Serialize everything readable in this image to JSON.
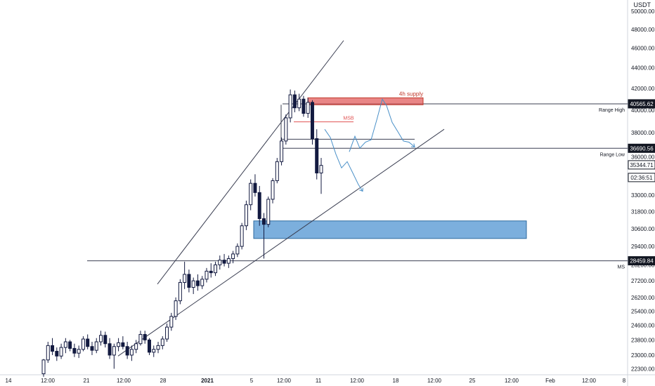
{
  "chart_data": {
    "type": "candlestick",
    "currency": "USDT",
    "y_axis": {
      "scale": "log",
      "ylim": [
        22000,
        50800
      ],
      "tick_labels": [
        "50000.00",
        "48000.00",
        "46000.00",
        "44000.00",
        "42000.00",
        "40000.00",
        "38000.00",
        "36000.00",
        "33000.00",
        "31800.00",
        "30600.00",
        "29400.00",
        "28200.00",
        "27200.00",
        "26200.00",
        "25400.00",
        "24600.00",
        "23800.00",
        "23000.00",
        "22300.00"
      ],
      "price_tags": [
        {
          "label": "40565.62",
          "value": 40565.62,
          "color": "#131722"
        },
        {
          "label": "36690.56",
          "value": 36690.56,
          "color": "#131722"
        },
        {
          "label": "35344.71",
          "value": 35344.71,
          "color": "#ffffff"
        },
        {
          "label": "02:36:51",
          "value": 34350,
          "color": "#ffffff"
        },
        {
          "label": "28459.84",
          "value": 28459.84,
          "color": "#131722"
        }
      ]
    },
    "x_axis": {
      "tick_labels": [
        "14",
        "12:00",
        "21",
        "12:00",
        "28",
        "2021",
        "5",
        "12:00",
        "11",
        "12:00",
        "18",
        "12:00",
        "25",
        "12:00",
        "Feb",
        "12:00",
        "8"
      ]
    },
    "candles": [
      [
        22050,
        22800,
        21900,
        22750
      ],
      [
        22750,
        23700,
        22600,
        23500
      ],
      [
        23500,
        23900,
        23000,
        23200
      ],
      [
        23200,
        23400,
        22700,
        22950
      ],
      [
        22950,
        23600,
        22800,
        23400
      ],
      [
        23400,
        23900,
        23100,
        23700
      ],
      [
        23700,
        23800,
        23200,
        23350
      ],
      [
        23350,
        23600,
        22900,
        23100
      ],
      [
        23100,
        23500,
        22850,
        23300
      ],
      [
        23300,
        24000,
        23200,
        23850
      ],
      [
        23850,
        24100,
        23300,
        23450
      ],
      [
        23450,
        23700,
        23000,
        23250
      ],
      [
        23250,
        23900,
        23100,
        23700
      ],
      [
        23700,
        24300,
        23500,
        24050
      ],
      [
        24050,
        24250,
        23400,
        23600
      ],
      [
        23600,
        23900,
        22800,
        23000
      ],
      [
        23000,
        23600,
        22300,
        23450
      ],
      [
        23450,
        23900,
        23200,
        23650
      ],
      [
        23650,
        24000,
        23300,
        23450
      ],
      [
        23450,
        23700,
        22800,
        23000
      ],
      [
        23000,
        23500,
        22700,
        23300
      ],
      [
        23300,
        23800,
        23100,
        23600
      ],
      [
        23600,
        24300,
        23500,
        24100
      ],
      [
        24100,
        24300,
        23600,
        23800
      ],
      [
        23800,
        23900,
        23000,
        23150
      ],
      [
        23150,
        23500,
        22900,
        23300
      ],
      [
        23300,
        23700,
        23100,
        23500
      ],
      [
        23500,
        24000,
        23300,
        23850
      ],
      [
        23850,
        24700,
        23700,
        24500
      ],
      [
        24500,
        25300,
        24300,
        25100
      ],
      [
        25100,
        26200,
        24900,
        26000
      ],
      [
        26000,
        27300,
        25800,
        27100
      ],
      [
        27100,
        28400,
        26700,
        27600
      ],
      [
        27600,
        27900,
        26500,
        26800
      ],
      [
        26800,
        27400,
        26400,
        27200
      ],
      [
        27200,
        27600,
        26600,
        26900
      ],
      [
        26900,
        27500,
        26700,
        27300
      ],
      [
        27300,
        28000,
        27100,
        27800
      ],
      [
        27800,
        28300,
        27400,
        27700
      ],
      [
        27700,
        28400,
        27500,
        28200
      ],
      [
        28200,
        28800,
        27900,
        28500
      ],
      [
        28500,
        28900,
        28100,
        28300
      ],
      [
        28300,
        28800,
        28000,
        28600
      ],
      [
        28600,
        29100,
        28300,
        28900
      ],
      [
        28900,
        29600,
        28700,
        29400
      ],
      [
        29400,
        31000,
        29200,
        30800
      ],
      [
        30800,
        32600,
        30500,
        32300
      ],
      [
        32300,
        34200,
        31900,
        33900
      ],
      [
        33900,
        34600,
        32900,
        33200
      ],
      [
        33200,
        33700,
        30800,
        31300
      ],
      [
        31300,
        31700,
        28600,
        30900
      ],
      [
        30900,
        32900,
        30700,
        32700
      ],
      [
        32700,
        34300,
        32400,
        34100
      ],
      [
        34100,
        35900,
        33900,
        35600
      ],
      [
        35600,
        37600,
        35300,
        37300
      ],
      [
        37300,
        39600,
        37000,
        39300
      ],
      [
        39300,
        41900,
        38900,
        41400
      ],
      [
        41400,
        41800,
        39800,
        40200
      ],
      [
        40200,
        41500,
        39900,
        41000
      ],
      [
        41000,
        41300,
        39400,
        39700
      ],
      [
        39700,
        41100,
        39300,
        40700
      ],
      [
        40700,
        40900,
        37000,
        37500
      ],
      [
        37500,
        38300,
        34200,
        34700
      ],
      [
        34700,
        35900,
        33100,
        35300
      ]
    ],
    "channel_lines": [
      {
        "name": "upper",
        "from": [
          224,
          27000
        ],
        "to": [
          489,
          46800
        ]
      },
      {
        "name": "lower",
        "from": [
          168,
          22950
        ],
        "to": [
          632,
          38300
        ]
      }
    ],
    "horizontal_levels": [
      {
        "label": "Range High",
        "value": 40565.62
      },
      {
        "label": "Range Low",
        "value": 36690.56
      },
      {
        "label": "MS",
        "value": 28459.84
      }
    ],
    "annotations": [
      {
        "label": "4h supply",
        "zone": [
          40480,
          41120
        ],
        "color": "#e05252"
      },
      {
        "label": "MSB",
        "value": 38950,
        "color": "#e05252"
      },
      {
        "zone": [
          29930,
          31140
        ],
        "color": "#5b9bd5"
      }
    ],
    "projections": [
      {
        "color": "#4a90c8",
        "points": [
          [
            462,
            38300
          ],
          [
            470,
            37600
          ],
          [
            478,
            36200
          ],
          [
            486,
            35100
          ],
          [
            494,
            35600
          ],
          [
            502,
            34700
          ],
          [
            510,
            33800
          ],
          [
            516,
            33300
          ]
        ]
      },
      {
        "color": "#4a90c8",
        "points": [
          [
            497,
            36400
          ],
          [
            505,
            37700
          ],
          [
            512,
            36700
          ],
          [
            520,
            37200
          ],
          [
            528,
            37400
          ],
          [
            536,
            39100
          ],
          [
            544,
            41000
          ],
          [
            550,
            40400
          ],
          [
            558,
            38900
          ],
          [
            566,
            38100
          ],
          [
            574,
            37300
          ],
          [
            582,
            37200
          ],
          [
            590,
            36800
          ]
        ]
      }
    ],
    "grid": false,
    "legend": "none"
  }
}
